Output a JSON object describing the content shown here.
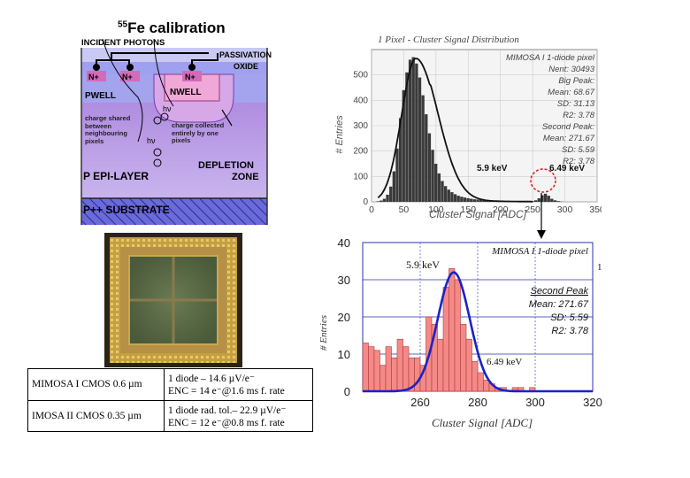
{
  "title": {
    "sup": "55",
    "text": "Fe calibration"
  },
  "cross_section": {
    "incident": "INCIDENT PHOTONS",
    "passivation": "PASSIVATION",
    "oxide": "OXIDE",
    "n1": "N+",
    "n2": "N+",
    "n3": "N+",
    "pwell": "PWELL",
    "nwell": "NWELL",
    "hv1": "hν",
    "hv2": "hν",
    "shared": "charge shared between neighbouring pixels",
    "collected": "charge collected entirely by one pixels",
    "depletion1": "DEPLETION",
    "depletion2": "ZONE",
    "epi": "P  EPI-LAYER",
    "substrate": "P++  SUBSTRATE"
  },
  "spec_table": {
    "rows": [
      {
        "name": "MIMOSA I CMOS 0.6 µm",
        "line1": "1 diode – 14.6 µV/e⁻",
        "line2": "ENC = 14 e⁻@1.6 ms f. rate"
      },
      {
        "name": "IMOSA II CMOS 0.35 µm",
        "line1": "1 diode rad. tol.– 22.9 µV/e⁻",
        "line2": "ENC = 12 e⁻@0.8 ms f. rate"
      }
    ]
  },
  "chart_data": [
    {
      "type": "bar",
      "title": "1 Pixel - Cluster Signal Distribution",
      "xlabel": "Cluster Signal [ADC]",
      "ylabel": "# Entries",
      "xlim": [
        0,
        350
      ],
      "ylim": [
        0,
        600
      ],
      "xticks": [
        "0",
        "50",
        "100",
        "150",
        "200",
        "250",
        "300",
        "350"
      ],
      "yticks": [
        "0",
        "100",
        "200",
        "300",
        "400",
        "500"
      ],
      "bin_width": 5,
      "x": [
        5,
        10,
        15,
        20,
        25,
        30,
        35,
        40,
        45,
        50,
        55,
        60,
        65,
        70,
        75,
        80,
        85,
        90,
        95,
        100,
        105,
        110,
        115,
        120,
        125,
        130,
        135,
        140,
        145,
        150,
        155,
        160,
        165,
        170,
        175,
        180,
        185,
        190,
        195,
        200,
        205,
        210,
        215,
        220,
        225,
        230,
        235,
        240,
        245,
        250,
        255,
        260,
        265,
        270,
        275,
        280,
        285,
        290,
        295
      ],
      "values": [
        0,
        2,
        5,
        12,
        28,
        60,
        120,
        210,
        330,
        440,
        510,
        560,
        570,
        545,
        490,
        420,
        345,
        270,
        205,
        150,
        112,
        82,
        62,
        48,
        38,
        30,
        24,
        20,
        17,
        14,
        12,
        10,
        9,
        8,
        7,
        6,
        6,
        5,
        5,
        4,
        4,
        3,
        3,
        3,
        3,
        2,
        2,
        2,
        2,
        3,
        6,
        14,
        26,
        32,
        24,
        12,
        6,
        3,
        1
      ],
      "stats": {
        "header": "MIMOSA I 1-diode pixel",
        "nent": "Nent: 30493",
        "big_peak": "Big Peak:",
        "mean1": "Mean: 68.67",
        "sd1": "SD: 31.13",
        "r2a": "R2: 3.78",
        "second_peak": "Second Peak:",
        "mean2": "Mean: 271.67",
        "sd2": "SD: 5.59",
        "r2b": "R2: 3.78"
      },
      "labels": {
        "kev1": "5.9 keV",
        "kev2": "6.49 keV"
      }
    },
    {
      "type": "bar",
      "title": "MIMOSA I 1-diode pixel",
      "xlabel": "Cluster Signal [ADC]",
      "ylabel": "# Entries",
      "xlim": [
        240,
        320
      ],
      "ylim": [
        0,
        40
      ],
      "xticks": [
        "260",
        "280",
        "300",
        "320"
      ],
      "yticks": [
        "0",
        "10",
        "20",
        "30",
        "40"
      ],
      "bin_width": 2,
      "x": [
        241,
        243,
        245,
        247,
        249,
        251,
        253,
        255,
        257,
        259,
        261,
        263,
        265,
        267,
        269,
        271,
        273,
        275,
        277,
        279,
        281,
        283,
        285,
        287,
        289,
        291,
        293,
        295,
        297,
        299,
        301,
        303,
        305,
        307,
        309,
        311,
        313,
        315,
        317
      ],
      "values": [
        13,
        12,
        11,
        7,
        12,
        9,
        14,
        12,
        9,
        9,
        7,
        20,
        18,
        14,
        28,
        33,
        30,
        18,
        14,
        8,
        5,
        3,
        2,
        1,
        1,
        0,
        1,
        1,
        0,
        1,
        0,
        0,
        0,
        0,
        0,
        0,
        0,
        0,
        0
      ],
      "fit": {
        "mean": 271.67,
        "sd": 5.59,
        "amp": 32
      },
      "labels": {
        "kev1": "5.9 keV",
        "kev2": "6.49 keV",
        "edge": "1"
      },
      "stats": {
        "second_peak": "Second Peak",
        "mean": "Mean: 271.67",
        "sd": "SD: 5.59",
        "r2": "R2: 3.78"
      },
      "colors": {
        "bar": "#f48a87",
        "fit": "#1a22c8",
        "grid": "#2b2fb0"
      }
    }
  ]
}
